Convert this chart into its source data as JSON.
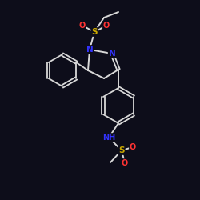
{
  "bg_color": "#0d0d1a",
  "bond_color": "#d8d8d8",
  "atom_colors": {
    "N": "#3333ff",
    "O": "#ff3333",
    "S": "#ccaa00",
    "C": "#d8d8d8"
  },
  "figsize": [
    2.5,
    2.5
  ],
  "dpi": 100
}
